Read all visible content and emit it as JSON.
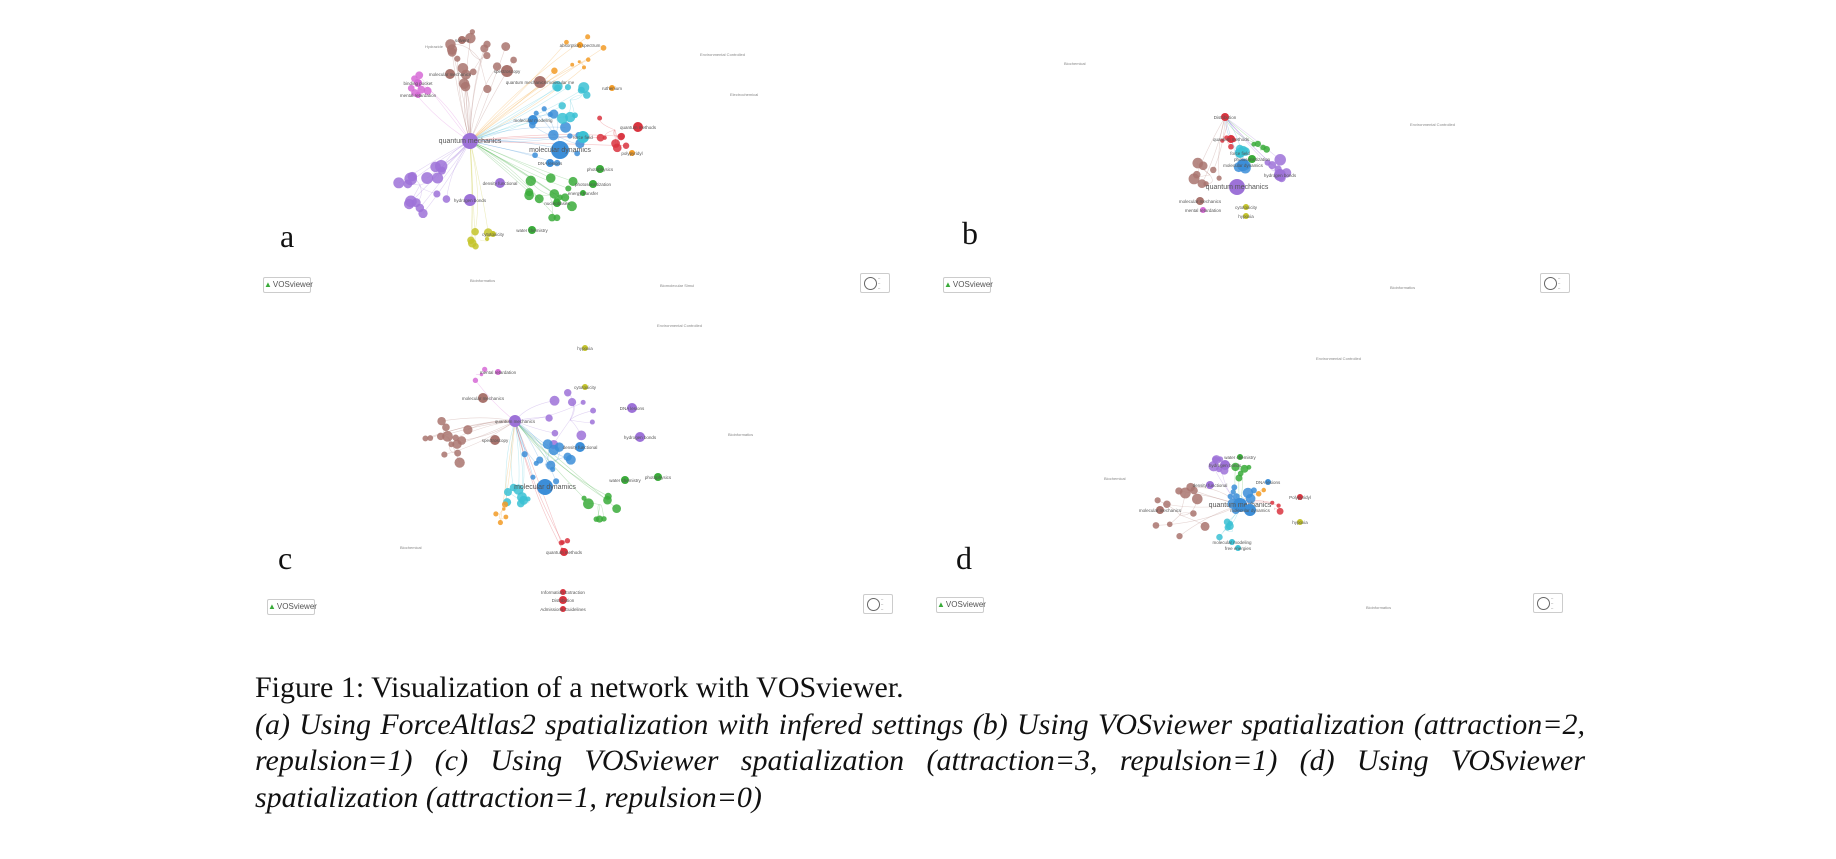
{
  "figure": {
    "title": "Figure 1: Visualization of a network with VOSviewer.",
    "description": "(a) Using ForceAltlas2 spatialization with infered settings (b) Using VOSviewer spatialization (attraction=2, repulsion=1) (c) Using VOSviewer spatialization (attraction=3, repulsion=1) (d) Using VOSviewer spatialization (attraction=1, repulsion=0)"
  },
  "badge_label": "VOSviewer",
  "colors": {
    "brown": "#a9746e",
    "purple": "#9d72d8",
    "blue": "#3c8ed8",
    "cyan": "#3bc1d4",
    "green": "#3aab3a",
    "red": "#d9343f",
    "orange": "#f29b26",
    "yellow": "#c4c42a",
    "pink": "#d66ad6"
  },
  "panels": [
    {
      "label": "a",
      "node_labels": [
        "quantum mechanics",
        "molecular dynamics",
        "molecular mechanics",
        "spectroscopy",
        "quantum mechanics/molecular me",
        "density functional",
        "hydrogen bonds",
        "force field",
        "molecular modeling",
        "quantum methods",
        "solvent",
        "absorption spectrum",
        "photophysics",
        "ruthenium",
        "DNA lesions",
        "nucleobases",
        "binding pocket",
        "mental retardation",
        "water chemistry",
        "cytotoxicity",
        "photosensitization",
        "energy transfer",
        "polypyridyl"
      ],
      "stray_labels": [
        "Environmental Controlled",
        "Biomolecular Simul",
        "Electrochemical",
        "Bioinformatics",
        "Hydrazide"
      ]
    },
    {
      "label": "b",
      "node_labels": [
        "Distribution",
        "quantum methods",
        "force field",
        "molecular dynamics",
        "hydrogen bonds",
        "quantum mechanics",
        "molecular mechanics",
        "mental retardation",
        "cytotoxicity",
        "hypoxia",
        "photosensitization"
      ],
      "stray_labels": [
        "Environmental Controlled",
        "Bioinformatics",
        "Biochemical"
      ]
    },
    {
      "label": "c",
      "node_labels": [
        "quantum mechanics",
        "molecular dynamics",
        "molecular mechanics",
        "mental retardation",
        "DNA lesions",
        "hydrogen bonds",
        "density functional",
        "quantum methods",
        "cytotoxicity",
        "photophysics",
        "Information Extraction",
        "Distribution",
        "Admissions Guidelines",
        "spectroscopy",
        "hypoxia",
        "water chemistry"
      ],
      "stray_labels": [
        "Environmental Controlled",
        "Biochemical",
        "Bioinformatics"
      ]
    },
    {
      "label": "d",
      "node_labels": [
        "quantum mechanics",
        "molecular dynamics",
        "molecular mechanics",
        "hydrogen bonds",
        "density functional",
        "water chemistry",
        "DNA lesions",
        "molecular modeling",
        "free energies",
        "Polypyridyl",
        "hypoxia"
      ],
      "stray_labels": [
        "Environmental Controlled",
        "Biochemical",
        "Bioinformatics"
      ]
    }
  ]
}
